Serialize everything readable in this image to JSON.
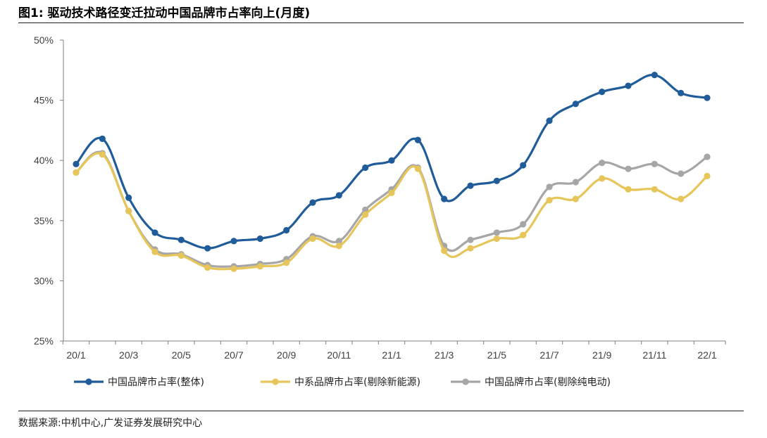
{
  "title": "图1: 驱动技术路径变迁拉动中国品牌市占率向上(月度)",
  "source": "数据来源:中机中心,广发证券发展研究中心",
  "chart_data": {
    "type": "line",
    "title": "图1: 驱动技术路径变迁拉动中国品牌市占率向上(月度)",
    "xlabel": "",
    "ylabel": "",
    "ylim": [
      25,
      50
    ],
    "y_ticks": [
      "25%",
      "30%",
      "35%",
      "40%",
      "45%",
      "50%"
    ],
    "x": [
      "20/1",
      "20/2",
      "20/3",
      "20/4",
      "20/5",
      "20/6",
      "20/7",
      "20/8",
      "20/9",
      "20/10",
      "20/11",
      "20/12",
      "21/1",
      "21/2",
      "21/3",
      "21/4",
      "21/5",
      "21/6",
      "21/7",
      "21/8",
      "21/9",
      "21/10",
      "21/11",
      "21/12",
      "22/1"
    ],
    "x_tick_labels": [
      "20/1",
      "20/3",
      "20/5",
      "20/7",
      "20/9",
      "20/11",
      "21/1",
      "21/3",
      "21/5",
      "21/7",
      "21/9",
      "21/11",
      "22/1"
    ],
    "grid": false,
    "legend_position": "bottom",
    "series": [
      {
        "name": "中国品牌市占率(整体)",
        "color": "#1f5c99",
        "values": [
          39.7,
          41.8,
          36.9,
          34.0,
          33.4,
          32.7,
          33.3,
          33.5,
          34.2,
          36.5,
          37.1,
          39.4,
          40.0,
          41.7,
          36.8,
          37.9,
          38.3,
          39.6,
          43.3,
          44.7,
          45.7,
          46.2,
          47.1,
          45.6,
          45.2
        ]
      },
      {
        "name": "中系品牌市占率(剔除新能源)",
        "color": "#e6c55a",
        "values": [
          39.0,
          40.5,
          35.8,
          32.4,
          32.1,
          31.1,
          31.0,
          31.2,
          31.5,
          33.5,
          32.9,
          35.5,
          37.3,
          39.3,
          32.5,
          32.7,
          33.5,
          33.8,
          36.7,
          36.8,
          38.5,
          37.6,
          37.6,
          36.8,
          38.7
        ]
      },
      {
        "name": "中国品牌市占率(剔除纯电动)",
        "color": "#a6a6a6",
        "values": [
          39.0,
          40.6,
          35.8,
          32.6,
          32.2,
          31.3,
          31.2,
          31.4,
          31.8,
          33.7,
          33.3,
          35.9,
          37.6,
          39.4,
          32.9,
          33.4,
          34.0,
          34.7,
          37.8,
          38.2,
          39.8,
          39.3,
          39.7,
          38.9,
          40.3
        ]
      }
    ]
  }
}
